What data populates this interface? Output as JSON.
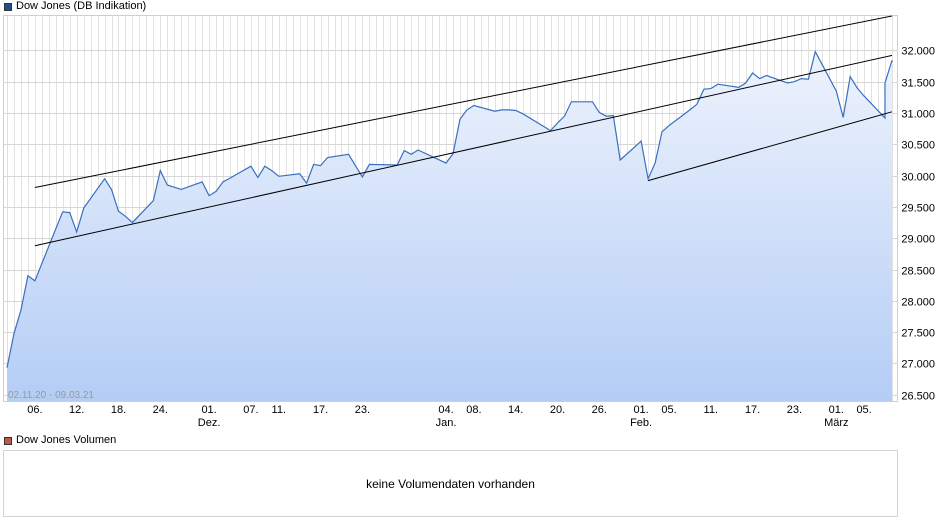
{
  "legend": {
    "price_label": "Dow Jones (DB Indikation)",
    "price_color": "#1f4e99",
    "volume_label": "Dow Jones Volumen",
    "volume_color": "#c8554b"
  },
  "volume_message": "keine Volumendaten vorhanden",
  "date_range": "02.11.20 - 09.03.21",
  "chart_data": {
    "type": "area",
    "title": "Dow Jones (DB Indikation)",
    "line_color": "#3a6fbf",
    "fill_top": "#eef3fd",
    "fill_bottom": "#b4cdf5",
    "ylim": [
      26400,
      32550
    ],
    "yticks": [
      26500,
      27000,
      27500,
      28000,
      28500,
      29000,
      29500,
      30000,
      30500,
      31000,
      31500,
      32000
    ],
    "ytick_labels": [
      "26.500",
      "27.000",
      "27.500",
      "28.000",
      "28.500",
      "29.000",
      "29.500",
      "30.000",
      "30.500",
      "31.000",
      "31.500",
      "32.000"
    ],
    "x_range": [
      "2020-11-02",
      "2021-03-09"
    ],
    "xticks": [
      {
        "date": "2020-11-06",
        "label": "06.",
        "month": ""
      },
      {
        "date": "2020-11-12",
        "label": "12.",
        "month": ""
      },
      {
        "date": "2020-11-18",
        "label": "18.",
        "month": ""
      },
      {
        "date": "2020-11-24",
        "label": "24.",
        "month": ""
      },
      {
        "date": "2020-12-01",
        "label": "01.",
        "month": "Dez."
      },
      {
        "date": "2020-12-07",
        "label": "07.",
        "month": ""
      },
      {
        "date": "2020-12-11",
        "label": "11.",
        "month": ""
      },
      {
        "date": "2020-12-17",
        "label": "17.",
        "month": ""
      },
      {
        "date": "2020-12-23",
        "label": "23.",
        "month": ""
      },
      {
        "date": "2021-01-04",
        "label": "04.",
        "month": "Jan."
      },
      {
        "date": "2021-01-08",
        "label": "08.",
        "month": ""
      },
      {
        "date": "2021-01-14",
        "label": "14.",
        "month": ""
      },
      {
        "date": "2021-01-20",
        "label": "20.",
        "month": ""
      },
      {
        "date": "2021-01-26",
        "label": "26.",
        "month": ""
      },
      {
        "date": "2021-02-01",
        "label": "01.",
        "month": "Feb."
      },
      {
        "date": "2021-02-05",
        "label": "05.",
        "month": ""
      },
      {
        "date": "2021-02-11",
        "label": "11.",
        "month": ""
      },
      {
        "date": "2021-02-17",
        "label": "17.",
        "month": ""
      },
      {
        "date": "2021-02-23",
        "label": "23.",
        "month": ""
      },
      {
        "date": "2021-03-01",
        "label": "01.",
        "month": "März"
      },
      {
        "date": "2021-03-05",
        "label": "05.",
        "month": ""
      }
    ],
    "series": [
      {
        "values": [
          [
            "2020-11-02",
            26930
          ],
          [
            "2020-11-03",
            27480
          ],
          [
            "2020-11-04",
            27850
          ],
          [
            "2020-11-05",
            28400
          ],
          [
            "2020-11-06",
            28320
          ],
          [
            "2020-11-09",
            29150
          ],
          [
            "2020-11-10",
            29420
          ],
          [
            "2020-11-11",
            29410
          ],
          [
            "2020-11-12",
            29100
          ],
          [
            "2020-11-13",
            29480
          ],
          [
            "2020-11-16",
            29950
          ],
          [
            "2020-11-17",
            29780
          ],
          [
            "2020-11-18",
            29430
          ],
          [
            "2020-11-19",
            29350
          ],
          [
            "2020-11-20",
            29250
          ],
          [
            "2020-11-23",
            29600
          ],
          [
            "2020-11-24",
            30080
          ],
          [
            "2020-11-25",
            29850
          ],
          [
            "2020-11-27",
            29780
          ],
          [
            "2020-11-30",
            29900
          ],
          [
            "2020-12-01",
            29680
          ],
          [
            "2020-12-02",
            29750
          ],
          [
            "2020-12-03",
            29900
          ],
          [
            "2020-12-04",
            29960
          ],
          [
            "2020-12-07",
            30150
          ],
          [
            "2020-12-08",
            29970
          ],
          [
            "2020-12-09",
            30150
          ],
          [
            "2020-12-10",
            30080
          ],
          [
            "2020-12-11",
            29990
          ],
          [
            "2020-12-14",
            30030
          ],
          [
            "2020-12-15",
            29880
          ],
          [
            "2020-12-16",
            30180
          ],
          [
            "2020-12-17",
            30160
          ],
          [
            "2020-12-18",
            30290
          ],
          [
            "2020-12-21",
            30340
          ],
          [
            "2020-12-22",
            30160
          ],
          [
            "2020-12-23",
            29980
          ],
          [
            "2020-12-24",
            30180
          ],
          [
            "2020-12-28",
            30170
          ],
          [
            "2020-12-29",
            30400
          ],
          [
            "2020-12-30",
            30340
          ],
          [
            "2020-12-31",
            30410
          ],
          [
            "2021-01-04",
            30200
          ],
          [
            "2021-01-05",
            30350
          ],
          [
            "2021-01-06",
            30900
          ],
          [
            "2021-01-07",
            31050
          ],
          [
            "2021-01-08",
            31120
          ],
          [
            "2021-01-11",
            31030
          ],
          [
            "2021-01-12",
            31050
          ],
          [
            "2021-01-13",
            31050
          ],
          [
            "2021-01-14",
            31040
          ],
          [
            "2021-01-15",
            30990
          ],
          [
            "2021-01-19",
            30720
          ],
          [
            "2021-01-20",
            30840
          ],
          [
            "2021-01-21",
            30950
          ],
          [
            "2021-01-22",
            31180
          ],
          [
            "2021-01-25",
            31180
          ],
          [
            "2021-01-26",
            31010
          ],
          [
            "2021-01-27",
            30950
          ],
          [
            "2021-01-28",
            30960
          ],
          [
            "2021-01-29",
            30250
          ],
          [
            "2021-02-01",
            30550
          ],
          [
            "2021-02-02",
            29950
          ],
          [
            "2021-02-03",
            30200
          ],
          [
            "2021-02-04",
            30700
          ],
          [
            "2021-02-05",
            30800
          ],
          [
            "2021-02-08",
            31050
          ],
          [
            "2021-02-09",
            31140
          ],
          [
            "2021-02-10",
            31380
          ],
          [
            "2021-02-11",
            31390
          ],
          [
            "2021-02-12",
            31460
          ],
          [
            "2021-02-15",
            31410
          ],
          [
            "2021-02-16",
            31480
          ],
          [
            "2021-02-17",
            31640
          ],
          [
            "2021-02-18",
            31550
          ],
          [
            "2021-02-19",
            31600
          ],
          [
            "2021-02-22",
            31480
          ],
          [
            "2021-02-23",
            31500
          ],
          [
            "2021-02-24",
            31550
          ],
          [
            "2021-02-25",
            31540
          ],
          [
            "2021-02-26",
            31980
          ],
          [
            "2021-03-01",
            31350
          ],
          [
            "2021-03-02",
            30930
          ],
          [
            "2021-03-03",
            31580
          ],
          [
            "2021-03-04",
            31400
          ],
          [
            "2021-03-05",
            31270
          ],
          [
            "2021-03-08",
            30920
          ],
          [
            "2021-03-08",
            31480
          ],
          [
            "2021-03-09",
            31840
          ],
          [
            "2021-03-09",
            31810
          ]
        ]
      }
    ],
    "trendlines": [
      {
        "from": [
          "2020-11-06",
          29810
        ],
        "to": [
          "2021-03-09",
          32550
        ]
      },
      {
        "from": [
          "2020-11-06",
          28880
        ],
        "to": [
          "2021-03-09",
          31920
        ]
      },
      {
        "from": [
          "2021-02-02",
          29920
        ],
        "to": [
          "2021-03-09",
          31020
        ]
      }
    ],
    "grid": true
  }
}
